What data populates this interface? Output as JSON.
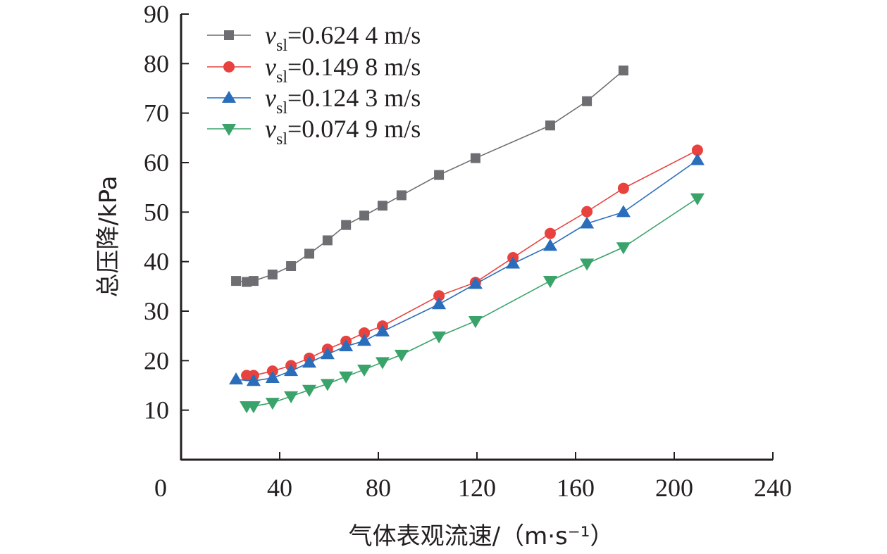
{
  "chart_data": {
    "type": "line",
    "title": "",
    "xlabel": "气体表观流速/（m·s⁻¹）",
    "ylabel": "总压降/kPa",
    "xlim": [
      0,
      240
    ],
    "ylim": [
      0,
      90
    ],
    "xticks": [
      0,
      40,
      80,
      120,
      160,
      200,
      240
    ],
    "yticks": [
      10,
      20,
      30,
      40,
      50,
      60,
      70,
      80,
      90
    ],
    "grid": false,
    "legend_position": "top-left",
    "series": [
      {
        "name": "v_sl=0.624 4 m/s",
        "legend_var": "v",
        "legend_sub": "sl",
        "legend_value": "=0.624 4 m/s",
        "marker": "square",
        "color": "#6d6e71",
        "x": [
          22.3,
          26.6,
          29.4,
          37.1,
          44.6,
          52.0,
          59.4,
          66.9,
          74.3,
          81.7,
          89.4,
          104.6,
          119.4,
          149.7,
          164.6,
          179.4
        ],
        "y": [
          36.1,
          35.9,
          36.1,
          37.4,
          39.1,
          41.6,
          44.3,
          47.4,
          49.3,
          51.3,
          53.4,
          57.5,
          60.9,
          67.5,
          72.4,
          78.6
        ]
      },
      {
        "name": "v_sl=0.149 8 m/s",
        "legend_var": "v",
        "legend_sub": "sl",
        "legend_value": "=0.149 8 m/s",
        "marker": "circle",
        "color": "#e8423f",
        "x": [
          26.6,
          29.4,
          37.1,
          44.6,
          52.0,
          59.4,
          66.9,
          74.3,
          81.7,
          104.6,
          119.4,
          134.6,
          149.7,
          164.6,
          179.4,
          209.4
        ],
        "y": [
          17.0,
          17.0,
          17.9,
          19.0,
          20.5,
          22.3,
          23.9,
          25.6,
          27.0,
          33.1,
          35.8,
          40.8,
          45.7,
          50.1,
          54.8,
          62.5
        ]
      },
      {
        "name": "v_sl=0.124 3 m/s",
        "legend_var": "v",
        "legend_sub": "sl",
        "legend_value": "=0.124 3 m/s",
        "marker": "triangle-up",
        "color": "#2a6ebb",
        "x": [
          22.3,
          29.4,
          37.1,
          44.6,
          52.0,
          59.4,
          66.9,
          74.3,
          81.7,
          104.6,
          119.4,
          134.6,
          149.7,
          164.6,
          179.4,
          209.4
        ],
        "y": [
          16.2,
          15.9,
          16.5,
          17.9,
          19.6,
          21.3,
          22.9,
          24.0,
          25.9,
          31.4,
          35.5,
          39.6,
          43.2,
          47.7,
          50.0,
          60.5
        ]
      },
      {
        "name": "v_sl=0.074 9 m/s",
        "legend_var": "v",
        "legend_sub": "sl",
        "legend_value": "=0.074 9 m/s",
        "marker": "triangle-down",
        "color": "#3aa36a",
        "x": [
          26.6,
          29.4,
          37.1,
          44.6,
          52.0,
          59.4,
          66.9,
          74.3,
          81.7,
          89.4,
          104.6,
          119.4,
          149.7,
          164.6,
          179.4,
          209.4
        ],
        "y": [
          10.8,
          10.8,
          11.5,
          12.8,
          14.1,
          15.3,
          16.8,
          18.2,
          19.7,
          21.2,
          24.9,
          28.0,
          36.1,
          39.6,
          42.9,
          52.8
        ]
      }
    ]
  }
}
